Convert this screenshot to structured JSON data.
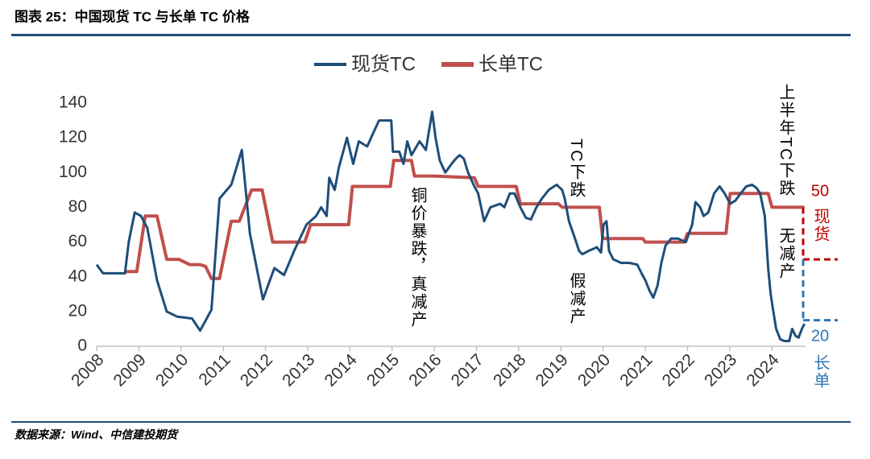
{
  "chart_data": {
    "type": "line",
    "title": "图表 25：中国现货 TC 与长单 TC 价格",
    "source": "数据来源：Wind、中信建投期货",
    "xlim": [
      2008,
      2025.56
    ],
    "xticks": [
      2008,
      2009,
      2010,
      2011,
      2012,
      2013,
      2014,
      2015,
      2016,
      2017,
      2018,
      2019,
      2020,
      2021,
      2022,
      2023,
      2024
    ],
    "ylim": [
      0,
      140
    ],
    "yticks": [
      0,
      20,
      40,
      60,
      80,
      100,
      120,
      140
    ],
    "legend": "top",
    "series": [
      {
        "name": "现货TC",
        "color": "#1f4e79",
        "x": [
          2008.0,
          2008.15,
          2008.67,
          2008.76,
          2008.9,
          2009.05,
          2009.2,
          2009.43,
          2009.66,
          2009.91,
          2010.26,
          2010.45,
          2010.72,
          2010.91,
          2011.19,
          2011.44,
          2011.63,
          2011.94,
          2012.21,
          2012.44,
          2012.68,
          2012.97,
          2013.2,
          2013.32,
          2013.45,
          2013.51,
          2013.64,
          2013.74,
          2013.93,
          2014.08,
          2014.21,
          2014.41,
          2014.54,
          2014.69,
          2014.98,
          2015.02,
          2015.17,
          2015.27,
          2015.36,
          2015.46,
          2015.65,
          2015.8,
          2015.95,
          2016.03,
          2016.13,
          2016.26,
          2016.41,
          2016.51,
          2016.6,
          2016.7,
          2016.8,
          2016.95,
          2017.04,
          2017.18,
          2017.33,
          2017.56,
          2017.66,
          2017.79,
          2017.9,
          2018.04,
          2018.17,
          2018.29,
          2018.42,
          2018.55,
          2018.71,
          2018.9,
          2019.03,
          2019.09,
          2019.19,
          2019.32,
          2019.43,
          2019.51,
          2019.66,
          2019.76,
          2019.85,
          2019.95,
          2020.01,
          2020.08,
          2020.14,
          2020.24,
          2020.43,
          2020.62,
          2020.81,
          2020.91,
          2021.0,
          2021.1,
          2021.19,
          2021.29,
          2021.38,
          2021.48,
          2021.61,
          2021.77,
          2021.96,
          2022.11,
          2022.19,
          2022.3,
          2022.38,
          2022.49,
          2022.63,
          2022.76,
          2022.88,
          2023.01,
          2023.14,
          2023.26,
          2023.39,
          2023.53,
          2023.64,
          2023.72,
          2023.83,
          2023.91,
          2023.97,
          2024.02,
          2024.1,
          2024.2,
          2024.29,
          2024.41,
          2024.48,
          2024.56,
          2024.63,
          2024.71,
          2024.77
        ],
        "values": [
          47,
          42,
          42,
          60,
          77,
          75,
          68,
          38,
          20,
          17,
          16,
          9,
          21,
          85,
          93,
          113,
          65,
          27,
          45,
          41,
          55,
          70,
          75,
          80,
          75,
          97,
          90,
          103,
          120,
          105,
          118,
          115,
          122,
          130,
          130,
          112,
          112,
          105,
          118,
          110,
          118,
          113,
          135,
          120,
          107,
          100,
          105,
          108,
          110,
          108,
          100,
          92,
          88,
          72,
          80,
          82,
          80,
          88,
          88,
          80,
          74,
          73,
          80,
          85,
          90,
          93,
          90,
          85,
          72,
          63,
          55,
          53,
          55,
          56,
          57,
          54,
          70,
          72,
          55,
          50,
          48,
          48,
          47,
          42,
          38,
          32,
          28,
          35,
          48,
          58,
          62,
          62,
          60,
          70,
          83,
          80,
          75,
          77,
          88,
          92,
          88,
          82,
          84,
          88,
          92,
          93,
          91,
          88,
          75,
          45,
          30,
          22,
          10,
          4,
          3,
          3,
          10,
          6,
          5,
          10,
          13
        ]
      },
      {
        "name": "长单TC",
        "color": "#c0504d",
        "x": [
          2008.67,
          2008.95,
          2009.15,
          2009.43,
          2009.66,
          2009.95,
          2010.2,
          2010.45,
          2010.58,
          2010.72,
          2010.91,
          2011.19,
          2011.38,
          2011.67,
          2011.92,
          2012.17,
          2012.93,
          2013.07,
          2013.97,
          2014.06,
          2014.96,
          2015.04,
          2015.46,
          2015.53,
          2015.99,
          2016.95,
          2017.04,
          2017.94,
          2018.04,
          2018.94,
          2019.03,
          2019.91,
          2019.99,
          2020.94,
          2021.0,
          2021.92,
          2022.0,
          2022.91,
          2023.01,
          2023.91,
          2024.0,
          2024.77
        ],
        "values": [
          43,
          43,
          75,
          75,
          50,
          50,
          47,
          47,
          46,
          39,
          39,
          72,
          72,
          90,
          90,
          60,
          60,
          70,
          70,
          92,
          92,
          107,
          107,
          98,
          98,
          97,
          92,
          92,
          82,
          82,
          80,
          80,
          62,
          62,
          60,
          60,
          65,
          65,
          88,
          88,
          80,
          80
        ]
      }
    ],
    "annotations": [
      {
        "text": "铜价暴跌，真减产"
      },
      {
        "text": "TC下跌"
      },
      {
        "text": "假减产"
      },
      {
        "text": "上半年TC下跌"
      },
      {
        "text": "无减产"
      },
      {
        "text": "50",
        "color": "#c00000"
      },
      {
        "text": "现货",
        "color": "#c00000"
      },
      {
        "text": "20",
        "color": "#2e75b6"
      },
      {
        "text": "长单",
        "color": "#2e75b6"
      }
    ],
    "reference_lines": [
      {
        "from": 80,
        "to": 50,
        "color": "#c00000"
      },
      {
        "from": 50,
        "to": 15,
        "color": "#2e75b6"
      }
    ]
  }
}
